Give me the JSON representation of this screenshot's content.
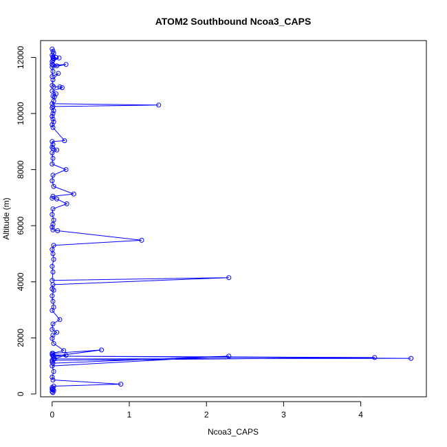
{
  "chart_data": {
    "type": "scatter",
    "title": "ATOM2 Southbound Ncoa3_CAPS",
    "xlabel": "Ncoa3_CAPS",
    "ylabel": "Altitude (m)",
    "xlim": [
      -0.15,
      4.85
    ],
    "ylim": [
      -100,
      12600
    ],
    "x_ticks": [
      0,
      1,
      2,
      3,
      4
    ],
    "y_ticks": [
      0,
      2000,
      4000,
      6000,
      8000,
      10000,
      12000
    ],
    "grid": false,
    "legend": "none",
    "line_color": "#0000ff",
    "marker": "open-circle",
    "series": [
      {
        "x": [
          0.0,
          0.01,
          0.02,
          0.0,
          0.01,
          0.05,
          0.01,
          0.02,
          0.09,
          0.01,
          0.0,
          0.06,
          0.0,
          0.01,
          0.18,
          0.0,
          0.01,
          0.0,
          0.08,
          0.01,
          0.0,
          0.02,
          0.1,
          0.13,
          0.0,
          0.05,
          0.01,
          0.03,
          0.02,
          0.0,
          1.38,
          0.01,
          0.0,
          0.02,
          0.01,
          0.0,
          0.01,
          0.02,
          0.0,
          0.01,
          0.16,
          0.0,
          0.01,
          0.0,
          0.01,
          0.06,
          0.0,
          0.01,
          0.0,
          0.18,
          0.01,
          0.0,
          0.02,
          0.28,
          0.01,
          0.0,
          0.06,
          0.19,
          0.01,
          0.0,
          0.02,
          0.01,
          0.0,
          0.01,
          0.07,
          1.16,
          0.02,
          0.0,
          0.01,
          0.02,
          0.0,
          0.01,
          0.0,
          2.29,
          0.01,
          0.0,
          0.02,
          0.0,
          0.01,
          0.02,
          0.0,
          0.1,
          0.01,
          0.0,
          0.06,
          0.01,
          0.0,
          0.02,
          0.15,
          0.0,
          0.01,
          4.65,
          0.03,
          0.0,
          4.18,
          0.02,
          0.64,
          0.01,
          0.0,
          0.18,
          0.02,
          0.0,
          0.01,
          2.29,
          0.0,
          0.02,
          0.0,
          0.01,
          0.89,
          0.02,
          0.0,
          0.01,
          0.0,
          0.01,
          0.02,
          0.0,
          0.01
        ],
        "y": [
          12300,
          12220,
          12150,
          12080,
          12020,
          12000,
          11980,
          11950,
          11980,
          11900,
          11850,
          11700,
          11750,
          11720,
          11750,
          11650,
          11500,
          11320,
          11430,
          11200,
          11000,
          10950,
          10950,
          10920,
          10800,
          10700,
          10620,
          10600,
          10450,
          10350,
          10300,
          10250,
          10200,
          10100,
          10000,
          9900,
          9800,
          9700,
          9600,
          9500,
          9030,
          9000,
          8900,
          8800,
          8750,
          8700,
          8600,
          8400,
          8200,
          8000,
          7800,
          7600,
          7400,
          7130,
          7050,
          6980,
          6950,
          6780,
          6600,
          6400,
          6200,
          6050,
          5950,
          5850,
          5820,
          5480,
          5300,
          5150,
          5000,
          4800,
          4550,
          4350,
          4050,
          4150,
          3900,
          3750,
          3700,
          3500,
          3300,
          3100,
          2980,
          2650,
          2500,
          2300,
          2200,
          2100,
          1980,
          1800,
          1550,
          1450,
          1350,
          1270,
          1250,
          1200,
          1300,
          1350,
          1570,
          1450,
          1400,
          1380,
          1250,
          1150,
          1100,
          1350,
          1000,
          800,
          600,
          500,
          350,
          280,
          230,
          200,
          170,
          150,
          120,
          80,
          50
        ]
      }
    ]
  }
}
